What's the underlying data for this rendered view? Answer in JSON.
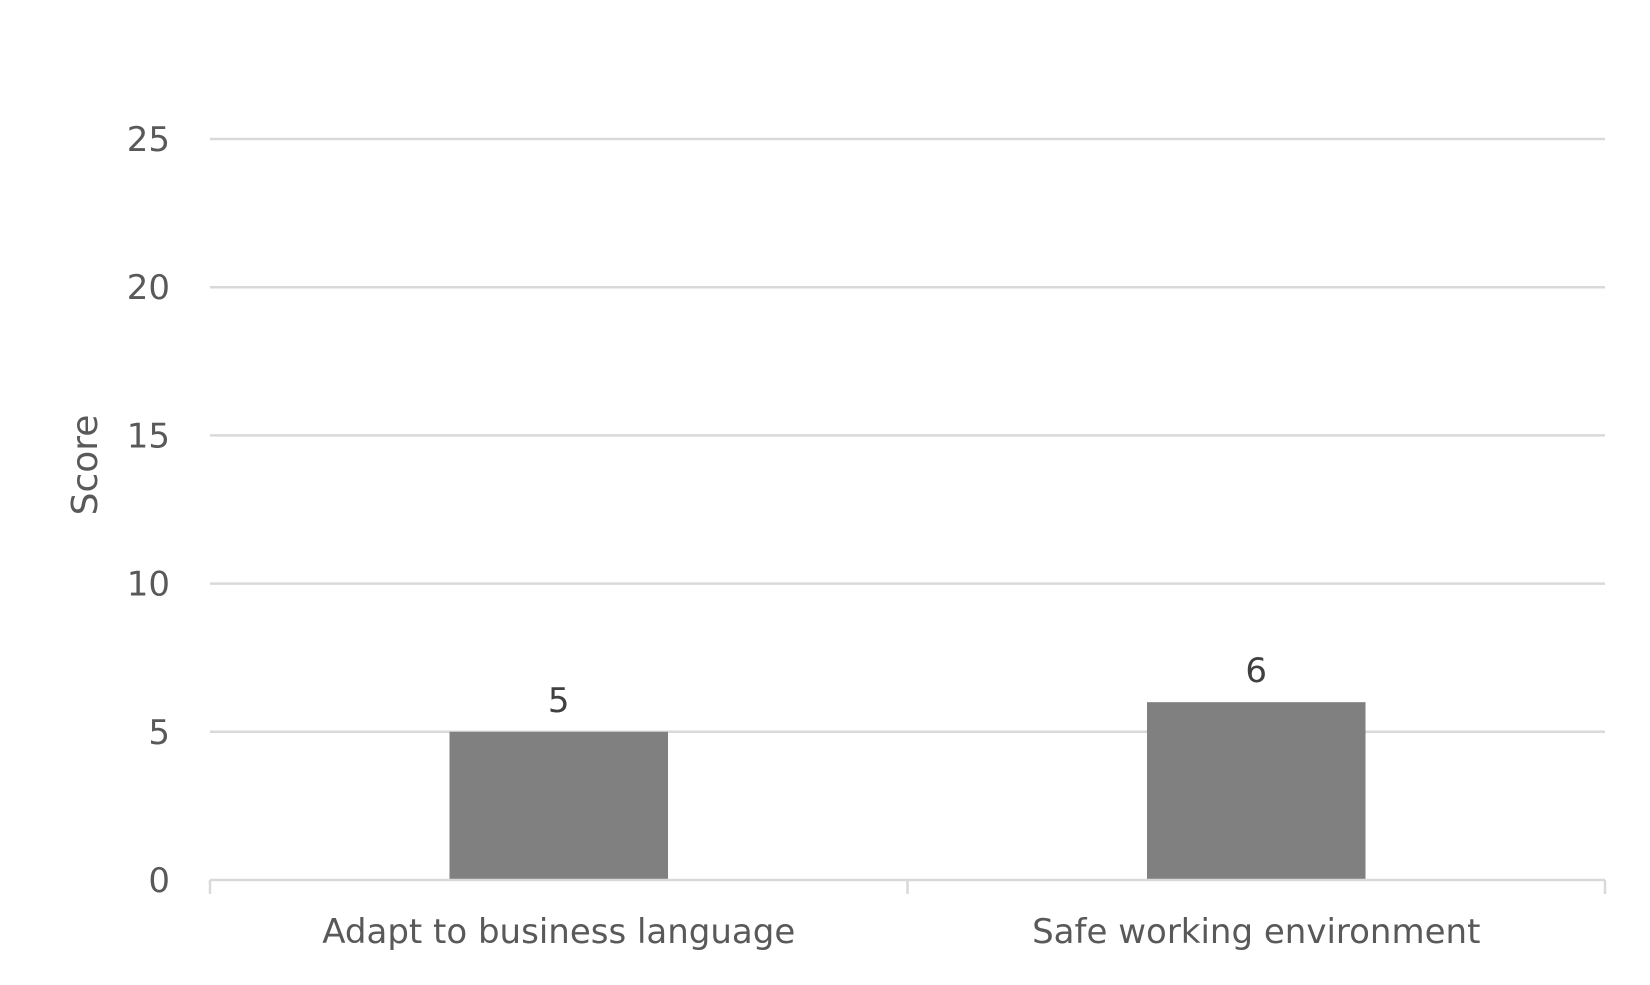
{
  "chart_data": {
    "type": "bar",
    "title": "",
    "xlabel": "",
    "ylabel": "Score",
    "categories": [
      "Adapt to business language",
      "Safe working environment"
    ],
    "values": [
      5,
      6
    ],
    "data_labels": [
      "5",
      "6"
    ],
    "ylim": [
      0,
      25
    ],
    "yticks": [
      0,
      5,
      10,
      15,
      20,
      25
    ],
    "grid": true,
    "legend": "none",
    "bar_color": "#808080"
  }
}
